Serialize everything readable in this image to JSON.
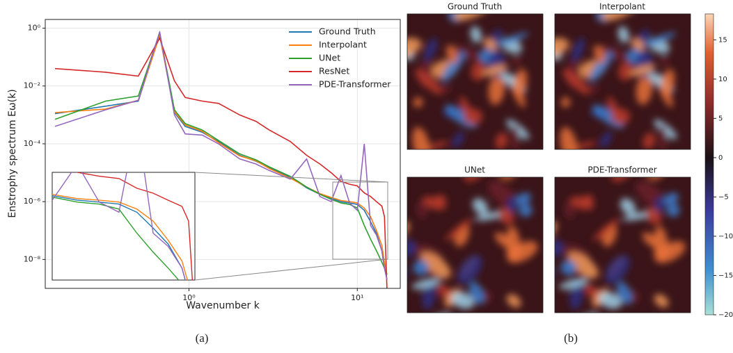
{
  "chart_data": [
    {
      "type": "line",
      "ylabel": "Enstrophy spectrum Eω(k)",
      "xlabel": "Wavenumber k",
      "caption": "(a)",
      "xscale": "log",
      "yscale": "log",
      "grid": true,
      "legend": "upper right",
      "xlim": [
        0.14,
        18
      ],
      "ylim": [
        1e-09,
        2
      ],
      "xticks": [
        {
          "value": 1,
          "label": "10⁰"
        },
        {
          "value": 10,
          "label": "10¹"
        }
      ],
      "yticks": [
        {
          "value": 1e-08,
          "label": "10⁻⁸"
        },
        {
          "value": 1e-06,
          "label": "10⁻⁶"
        },
        {
          "value": 0.0001,
          "label": "10⁻⁴"
        },
        {
          "value": 0.01,
          "label": "10⁻²"
        },
        {
          "value": 1,
          "label": "10⁰"
        }
      ],
      "x": [
        0.16,
        0.32,
        0.5,
        0.67,
        0.82,
        0.95,
        1.2,
        1.5,
        2,
        2.5,
        3,
        4,
        5,
        6,
        7,
        8,
        9,
        10,
        11,
        12,
        13,
        14,
        14.5,
        15
      ],
      "series": [
        {
          "name": "Ground Truth",
          "color": "#1f77b4",
          "values": [
            0.0011,
            0.002,
            0.003,
            0.6,
            0.0012,
            0.0004,
            0.00025,
            0.00012,
            4e-05,
            2.5e-05,
            1.5e-05,
            7e-06,
            3e-06,
            1.8e-06,
            1.3e-06,
            1e-06,
            9e-07,
            8e-07,
            5e-07,
            2e-07,
            8e-08,
            2e-08,
            5e-09,
            2e-09
          ]
        },
        {
          "name": "Interpolant",
          "color": "#ff7f0e",
          "values": [
            0.0012,
            0.0016,
            0.0032,
            0.55,
            0.0013,
            0.00045,
            0.00027,
            0.00011,
            3.8e-05,
            2.6e-05,
            1.4e-05,
            6.5e-06,
            3.2e-06,
            1.9e-06,
            1.4e-06,
            1.1e-06,
            1e-06,
            9e-07,
            6e-07,
            3e-07,
            1e-07,
            3e-08,
            8e-09,
            3e-09
          ]
        },
        {
          "name": "UNet",
          "color": "#2ca02c",
          "values": [
            0.0007,
            0.003,
            0.0045,
            0.7,
            0.0015,
            0.0005,
            0.0003,
            0.00013,
            4.5e-05,
            2.8e-05,
            1.6e-05,
            7.5e-06,
            3.2e-06,
            1.8e-06,
            1.2e-06,
            9e-07,
            8e-07,
            6e-07,
            1.5e-07,
            5e-08,
            2e-08,
            8e-09,
            5e-09,
            3e-09
          ]
        },
        {
          "name": "ResNet",
          "color": "#d62728",
          "values": [
            0.04,
            0.03,
            0.022,
            0.45,
            0.015,
            0.004,
            0.003,
            0.0025,
            0.001,
            0.0006,
            0.0003,
            0.00012,
            4e-05,
            2e-05,
            1e-05,
            5e-06,
            4e-06,
            3.5e-06,
            2e-06,
            1.5e-06,
            1e-06,
            7e-07,
            3e-07,
            1e-09
          ]
        },
        {
          "name": "PDE-Transformer",
          "color": "#9467bd",
          "values": [
            0.0004,
            0.0015,
            0.0032,
            0.75,
            0.001,
            0.00022,
            0.0002,
            0.0001,
            3e-05,
            2e-05,
            1.2e-05,
            6e-06,
            3e-05,
            1.5e-06,
            1e-06,
            8e-06,
            9e-07,
            5e-07,
            0.0001,
            1.5e-07,
            7e-08,
            2e-08,
            5e-09,
            2e-09
          ]
        }
      ]
    },
    {
      "type": "heatmap",
      "caption": "(b)",
      "panels": [
        "Ground Truth",
        "Interpolant",
        "UNet",
        "PDE-Transformer"
      ],
      "clim": [
        -20,
        18.3
      ],
      "cticks": [
        15,
        10,
        5,
        0,
        {
          "value": -5,
          "label": "−5"
        },
        {
          "value": -10,
          "label": "−10"
        },
        {
          "value": -15,
          "label": "−15"
        },
        {
          "value": -20,
          "label": "−20"
        }
      ]
    }
  ]
}
